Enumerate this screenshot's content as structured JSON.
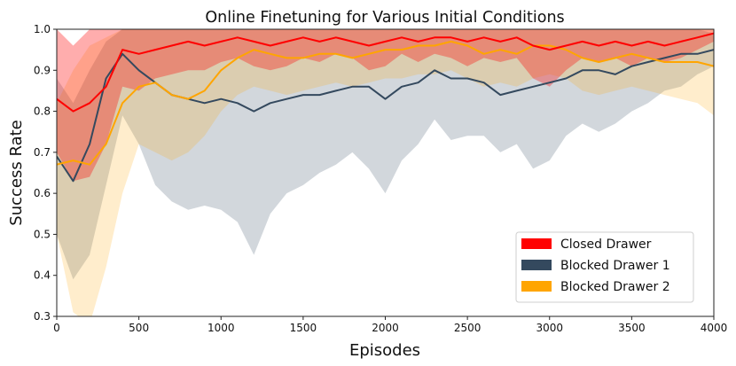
{
  "chart_data": {
    "type": "line",
    "title": "Online Finetuning for Various Initial Conditions",
    "xlabel": "Episodes",
    "ylabel": "Success Rate",
    "xlim": [
      0,
      4000
    ],
    "ylim": [
      0.3,
      1.0
    ],
    "xticks": [
      0,
      500,
      1000,
      1500,
      2000,
      2500,
      3000,
      3500,
      4000
    ],
    "yticks": [
      0.3,
      0.4,
      0.5,
      0.6,
      0.7,
      0.8,
      0.9,
      1.0
    ],
    "xtick_labels": [
      "0",
      "500",
      "1000",
      "1500",
      "2000",
      "2500",
      "3000",
      "3500",
      "4000"
    ],
    "ytick_labels": [
      "0.3",
      "0.4",
      "0.5",
      "0.6",
      "0.7",
      "0.8",
      "0.9",
      "1.0"
    ],
    "grid": false,
    "legend_position": "bottom-right",
    "x": [
      0,
      100,
      200,
      300,
      400,
      500,
      600,
      700,
      800,
      900,
      1000,
      1100,
      1200,
      1300,
      1400,
      1500,
      1600,
      1700,
      1800,
      1900,
      2000,
      2100,
      2200,
      2300,
      2400,
      2500,
      2600,
      2700,
      2800,
      2900,
      3000,
      3100,
      3200,
      3300,
      3400,
      3500,
      3600,
      3700,
      3800,
      3900,
      4000
    ],
    "series": [
      {
        "name": "Closed Drawer",
        "color": "#ff0000",
        "values": [
          0.83,
          0.8,
          0.82,
          0.86,
          0.95,
          0.94,
          0.95,
          0.96,
          0.97,
          0.96,
          0.97,
          0.98,
          0.97,
          0.96,
          0.97,
          0.98,
          0.97,
          0.98,
          0.97,
          0.96,
          0.97,
          0.98,
          0.97,
          0.98,
          0.98,
          0.97,
          0.98,
          0.97,
          0.98,
          0.96,
          0.95,
          0.96,
          0.97,
          0.96,
          0.97,
          0.96,
          0.97,
          0.96,
          0.97,
          0.98,
          0.99
        ],
        "lower": [
          0.7,
          0.63,
          0.64,
          0.72,
          0.86,
          0.85,
          0.88,
          0.89,
          0.9,
          0.9,
          0.92,
          0.93,
          0.91,
          0.9,
          0.91,
          0.93,
          0.92,
          0.94,
          0.93,
          0.9,
          0.91,
          0.94,
          0.92,
          0.94,
          0.93,
          0.91,
          0.93,
          0.92,
          0.93,
          0.88,
          0.86,
          0.9,
          0.93,
          0.92,
          0.93,
          0.91,
          0.93,
          0.92,
          0.93,
          0.95,
          0.97
        ],
        "upper": [
          1.0,
          0.96,
          1.0,
          1.0,
          1.0,
          1.0,
          1.0,
          1.0,
          1.0,
          1.0,
          1.0,
          1.0,
          1.0,
          1.0,
          1.0,
          1.0,
          1.0,
          1.0,
          1.0,
          1.0,
          1.0,
          1.0,
          1.0,
          1.0,
          1.0,
          1.0,
          1.0,
          1.0,
          1.0,
          1.0,
          1.0,
          1.0,
          1.0,
          1.0,
          1.0,
          1.0,
          1.0,
          1.0,
          1.0,
          1.0,
          1.0
        ]
      },
      {
        "name": "Blocked Drawer 1",
        "color": "#34495e",
        "values": [
          0.69,
          0.63,
          0.72,
          0.88,
          0.94,
          0.9,
          0.87,
          0.84,
          0.83,
          0.82,
          0.83,
          0.82,
          0.8,
          0.82,
          0.83,
          0.84,
          0.84,
          0.85,
          0.86,
          0.86,
          0.83,
          0.86,
          0.87,
          0.9,
          0.88,
          0.88,
          0.87,
          0.84,
          0.85,
          0.86,
          0.87,
          0.88,
          0.9,
          0.9,
          0.89,
          0.91,
          0.92,
          0.93,
          0.94,
          0.94,
          0.95
        ],
        "lower": [
          0.5,
          0.39,
          0.45,
          0.62,
          0.79,
          0.72,
          0.62,
          0.58,
          0.56,
          0.57,
          0.56,
          0.53,
          0.45,
          0.55,
          0.6,
          0.62,
          0.65,
          0.67,
          0.7,
          0.66,
          0.6,
          0.68,
          0.72,
          0.78,
          0.73,
          0.74,
          0.74,
          0.7,
          0.72,
          0.66,
          0.68,
          0.74,
          0.77,
          0.75,
          0.77,
          0.8,
          0.82,
          0.85,
          0.86,
          0.89,
          0.91
        ],
        "upper": [
          0.88,
          0.82,
          0.9,
          0.97,
          1.0,
          1.0,
          1.0,
          1.0,
          1.0,
          1.0,
          1.0,
          1.0,
          1.0,
          1.0,
          1.0,
          1.0,
          1.0,
          1.0,
          1.0,
          1.0,
          1.0,
          1.0,
          1.0,
          1.0,
          1.0,
          1.0,
          1.0,
          1.0,
          1.0,
          1.0,
          1.0,
          1.0,
          1.0,
          1.0,
          1.0,
          1.0,
          1.0,
          1.0,
          1.0,
          1.0,
          0.99
        ]
      },
      {
        "name": "Blocked Drawer 2",
        "color": "#ffa500",
        "values": [
          0.67,
          0.68,
          0.67,
          0.72,
          0.82,
          0.86,
          0.87,
          0.84,
          0.83,
          0.85,
          0.9,
          0.93,
          0.95,
          0.94,
          0.93,
          0.93,
          0.94,
          0.94,
          0.93,
          0.94,
          0.95,
          0.95,
          0.96,
          0.96,
          0.97,
          0.96,
          0.94,
          0.95,
          0.94,
          0.96,
          0.96,
          0.95,
          0.93,
          0.92,
          0.93,
          0.94,
          0.93,
          0.92,
          0.92,
          0.92,
          0.91
        ],
        "lower": [
          0.5,
          0.31,
          0.28,
          0.42,
          0.6,
          0.72,
          0.7,
          0.68,
          0.7,
          0.74,
          0.8,
          0.84,
          0.86,
          0.85,
          0.84,
          0.85,
          0.86,
          0.87,
          0.86,
          0.87,
          0.88,
          0.88,
          0.89,
          0.89,
          0.9,
          0.88,
          0.86,
          0.87,
          0.86,
          0.88,
          0.89,
          0.88,
          0.85,
          0.84,
          0.85,
          0.86,
          0.85,
          0.84,
          0.83,
          0.82,
          0.79
        ],
        "upper": [
          0.82,
          0.9,
          0.96,
          0.98,
          1.0,
          1.0,
          1.0,
          1.0,
          1.0,
          1.0,
          1.0,
          1.0,
          1.0,
          1.0,
          1.0,
          1.0,
          1.0,
          1.0,
          1.0,
          1.0,
          1.0,
          1.0,
          1.0,
          1.0,
          1.0,
          1.0,
          1.0,
          1.0,
          1.0,
          1.0,
          1.0,
          1.0,
          1.0,
          1.0,
          1.0,
          1.0,
          1.0,
          1.0,
          1.0,
          1.0,
          1.0
        ]
      }
    ]
  }
}
